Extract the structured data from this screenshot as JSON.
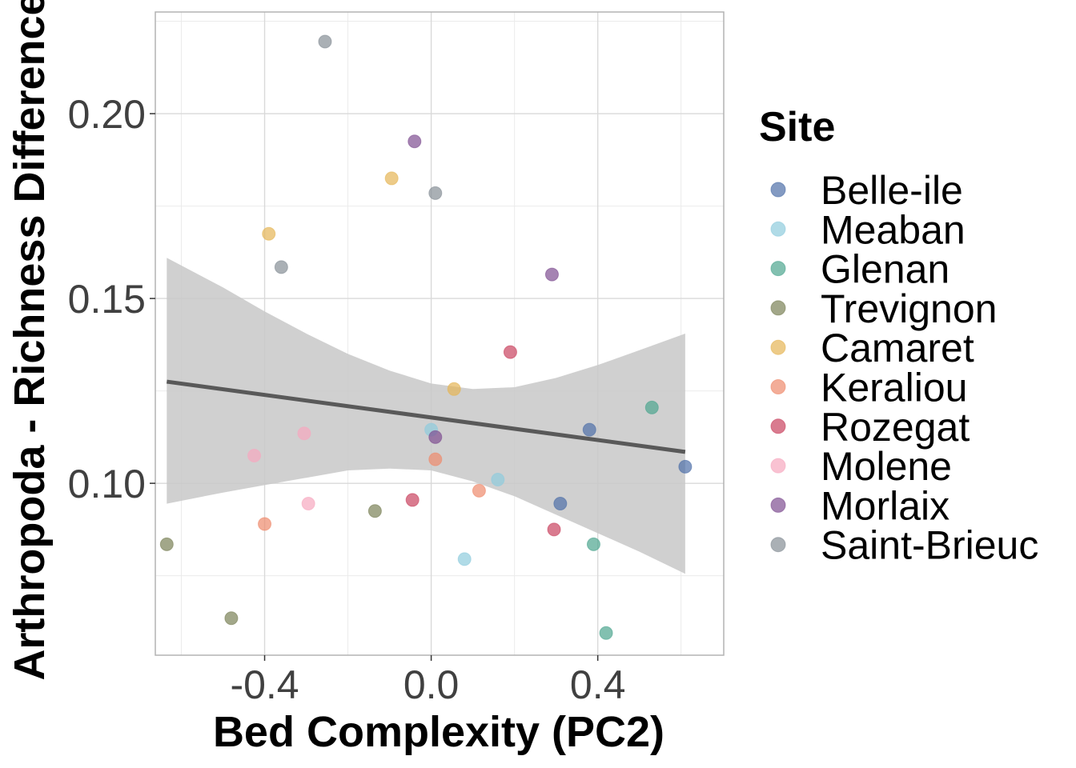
{
  "chart_data": {
    "type": "scatter",
    "xlabel": "Bed Complexity (PC2)",
    "ylabel": "Arthropoda - Richness Difference",
    "xlim": [
      -0.6625,
      0.7025
    ],
    "ylim": [
      0.0535,
      0.2275
    ],
    "x_ticks": [
      -0.4,
      0.0,
      0.4
    ],
    "x_tick_labels": [
      "-0.4",
      "0.0",
      "0.4"
    ],
    "y_ticks": [
      0.1,
      0.15,
      0.2
    ],
    "y_tick_labels": [
      "0.10",
      "0.15",
      "0.20"
    ],
    "grid": true,
    "legend_title": "Site",
    "legend_position": "right",
    "series": [
      {
        "name": "Belle-ile",
        "color": "#4E6FA8",
        "points": [
          [
            0.38,
            0.1145
          ],
          [
            0.31,
            0.0945
          ],
          [
            0.61,
            0.1045
          ]
        ]
      },
      {
        "name": "Meaban",
        "color": "#8FCCDD",
        "points": [
          [
            0.0,
            0.1145
          ],
          [
            0.08,
            0.0795
          ],
          [
            0.16,
            0.101
          ]
        ]
      },
      {
        "name": "Glenan",
        "color": "#4DA58F",
        "points": [
          [
            0.53,
            0.1205
          ],
          [
            0.39,
            0.0835
          ],
          [
            0.42,
            0.0595
          ]
        ]
      },
      {
        "name": "Trevignon",
        "color": "#7A8157",
        "points": [
          [
            -0.635,
            0.0835
          ],
          [
            -0.48,
            0.0635
          ],
          [
            -0.135,
            0.0925
          ]
        ]
      },
      {
        "name": "Camaret",
        "color": "#E5B555",
        "points": [
          [
            -0.39,
            0.1675
          ],
          [
            -0.095,
            0.1825
          ],
          [
            0.055,
            0.1255
          ]
        ]
      },
      {
        "name": "Keraliou",
        "color": "#EE8A6C",
        "points": [
          [
            -0.4,
            0.089
          ],
          [
            0.01,
            0.1065
          ],
          [
            0.115,
            0.098
          ]
        ]
      },
      {
        "name": "Rozegat",
        "color": "#C9435F",
        "points": [
          [
            0.19,
            0.1355
          ],
          [
            -0.045,
            0.0955
          ],
          [
            0.295,
            0.0875
          ]
        ]
      },
      {
        "name": "Molene",
        "color": "#F7A8BF",
        "points": [
          [
            -0.425,
            0.1075
          ],
          [
            -0.305,
            0.1135
          ],
          [
            -0.295,
            0.0945
          ]
        ]
      },
      {
        "name": "Morlaix",
        "color": "#7F4F91",
        "points": [
          [
            -0.04,
            0.1925
          ],
          [
            0.29,
            0.1565
          ],
          [
            0.01,
            0.1125
          ]
        ]
      },
      {
        "name": "Saint-Brieuc",
        "color": "#868E96",
        "points": [
          [
            -0.255,
            0.2195
          ],
          [
            0.01,
            0.1785
          ],
          [
            -0.36,
            0.1585
          ]
        ]
      }
    ],
    "fit_line": {
      "x": [
        -0.635,
        0.61
      ],
      "y": [
        0.1275,
        0.1085
      ],
      "color": "#595959"
    },
    "confidence_band": {
      "color": "#C8C8C8",
      "x": [
        -0.635,
        -0.5,
        -0.4,
        -0.3,
        -0.2,
        -0.1,
        0.0,
        0.1,
        0.2,
        0.3,
        0.4,
        0.5,
        0.61
      ],
      "upper": [
        0.161,
        0.153,
        0.1465,
        0.1405,
        0.135,
        0.1305,
        0.127,
        0.1255,
        0.126,
        0.1285,
        0.132,
        0.136,
        0.1405
      ],
      "lower": [
        0.0945,
        0.0975,
        0.0995,
        0.1015,
        0.1035,
        0.104,
        0.1035,
        0.1005,
        0.0965,
        0.0915,
        0.0865,
        0.0815,
        0.0755
      ]
    }
  }
}
